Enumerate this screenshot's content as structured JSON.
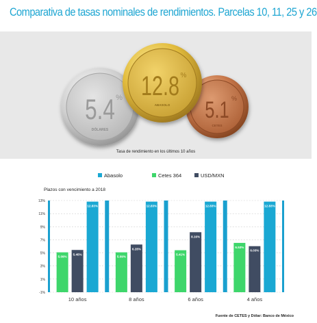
{
  "title": "Comparativa de tasas nominales de rendimientos. Parcelas 10, 11, 25 y 26",
  "medals": [
    {
      "id": "silver",
      "value": "5.4",
      "unit": "%",
      "label": "DÓLARES"
    },
    {
      "id": "gold",
      "value": "12.8",
      "unit": "%",
      "label": "ABASOLO"
    },
    {
      "id": "bronze",
      "value": "5.1",
      "unit": "%",
      "label": "CETES"
    }
  ],
  "medals_caption": "Tasa de rendimiento en los últimos 10 años",
  "colors": {
    "title": "#1ea6d2",
    "abasolo": "#1aa8d3",
    "cetes": "#3ed66b",
    "usd": "#404c62",
    "chart_bg": "#1aa0cf"
  },
  "chart_data": {
    "type": "bar",
    "subtitle": "Plazos con vencimiento a 2018",
    "categories": [
      "10 años",
      "8 años",
      "6 años",
      "4 años"
    ],
    "series": [
      {
        "name": "Cetes 364",
        "values": [
          5.09,
          5.09,
          5.41,
          6.53
        ],
        "labels": [
          "5.09%",
          "5.09%",
          "5.41%",
          "6.53%"
        ]
      },
      {
        "name": "USD/MXN",
        "values": [
          5.45,
          6.28,
          8.16,
          6.03
        ],
        "labels": [
          "5.45%",
          "6.28%",
          "8.16%",
          "6.03%"
        ]
      },
      {
        "name": "Abasolo",
        "values": [
          12.83,
          12.83,
          12.83,
          12.83
        ],
        "labels": [
          "12.83%",
          "12.83%",
          "12.83%",
          "12.83%"
        ]
      }
    ],
    "legend_order": [
      "Abasolo",
      "Cetes 364",
      "USD/MXN"
    ],
    "legend_position": "top",
    "yticks": [
      "-1%",
      "1%",
      "3%",
      "5%",
      "7%",
      "9%",
      "11%",
      "13%"
    ],
    "ylim": [
      -1,
      13
    ],
    "grid": true
  },
  "source": "Fuente de CETES y Dólar: Banco de México"
}
